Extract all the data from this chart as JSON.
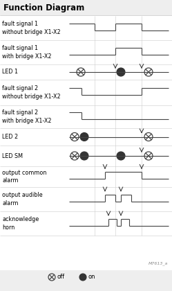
{
  "title": "Function Diagram",
  "bg_color": "#eeeeee",
  "white": "#ffffff",
  "line_color": "#444444",
  "title_fontsize": 8.5,
  "label_fontsize": 5.8,
  "legend_fontsize": 6.0,
  "row_labels": [
    "fault signal 1\nwithout bridge X1-X2",
    "fault signal 1\nwith bridge X1-X2",
    "LED 1",
    "fault signal 2\nwithout bridge X1-X2",
    "fault signal 2\nwith bridge X1-X2",
    "LED 2",
    "LED SM",
    "output common\nalarm",
    "output audible\nalarm",
    "acknowledge\nhorn"
  ],
  "watermark": "M7613_a",
  "legend_off": "off",
  "legend_on": "on"
}
